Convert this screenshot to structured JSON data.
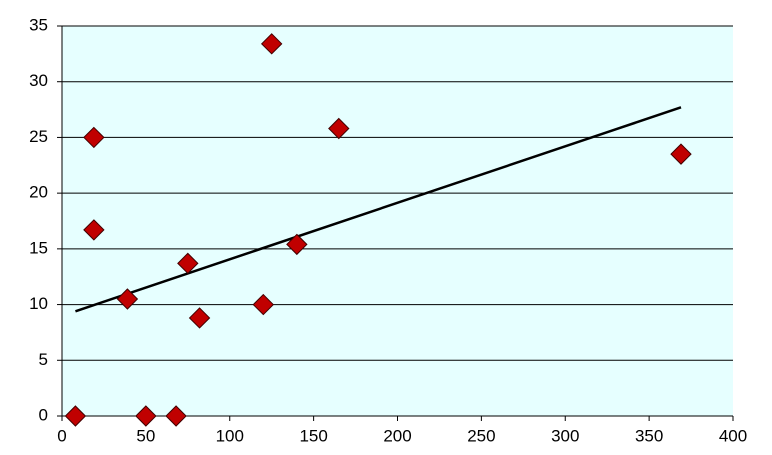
{
  "chart_data": {
    "type": "scatter",
    "x": [
      8,
      19,
      19,
      39,
      50,
      68,
      75,
      82,
      120,
      125,
      140,
      165,
      369
    ],
    "values": [
      0,
      25,
      16.7,
      10.5,
      0,
      0,
      13.7,
      8.8,
      10,
      33.4,
      15.4,
      25.8,
      23.5
    ],
    "color": "#c00000",
    "trendline": {
      "x": [
        8,
        369
      ],
      "y": [
        9.4,
        27.7
      ],
      "color": "#000000"
    },
    "xlim": [
      0,
      400
    ],
    "xticks": [
      0,
      50,
      100,
      150,
      200,
      250,
      300,
      350,
      400
    ],
    "ylim": [
      0,
      35
    ],
    "yticks": [
      0,
      5,
      10,
      15,
      20,
      25,
      30,
      35
    ],
    "grid": true,
    "background": "#e6ffff"
  }
}
